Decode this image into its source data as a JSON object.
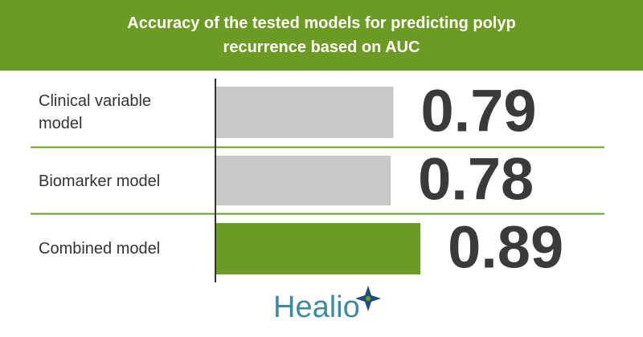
{
  "chart_data": {
    "type": "bar",
    "orientation": "horizontal",
    "title": "Accuracy of the tested models for predicting polyp recurrence based on AUC",
    "categories": [
      "Clinical variable model",
      "Biomarker model",
      "Combined model"
    ],
    "values": [
      0.79,
      0.78,
      0.89
    ],
    "colors": [
      "#c8c8c8",
      "#c8c8c8",
      "#6b9b22"
    ],
    "xlim": [
      0.13,
      1
    ],
    "logo": "Healio"
  }
}
